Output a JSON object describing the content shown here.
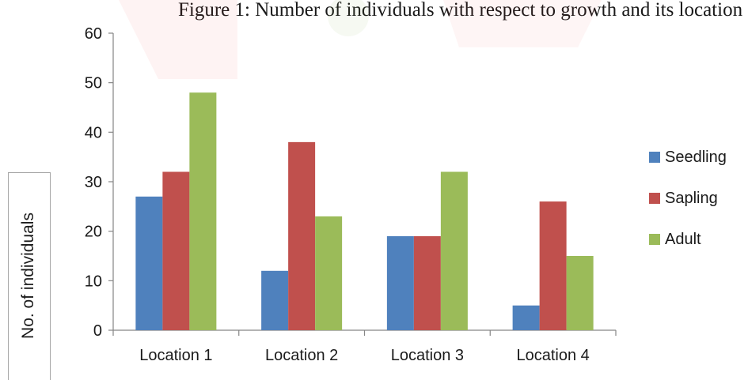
{
  "figure_title": "Figure 1: Number of individuals with respect to growth and its location",
  "chart_data": {
    "type": "bar",
    "title": "",
    "xlabel": "",
    "ylabel": "No. of individuals",
    "categories": [
      "Location 1",
      "Location 2",
      "Location 3",
      "Location 4"
    ],
    "series": [
      {
        "name": "Seedling",
        "color": "#4f81bd",
        "values": [
          27,
          12,
          19,
          5
        ]
      },
      {
        "name": "Sapling",
        "color": "#c0504d",
        "values": [
          32,
          38,
          19,
          26
        ]
      },
      {
        "name": "Adult",
        "color": "#9bbb59",
        "values": [
          48,
          23,
          32,
          15
        ]
      }
    ],
    "ylim": [
      0,
      60
    ],
    "yticks": [
      0,
      10,
      20,
      30,
      40,
      50,
      60
    ],
    "grid": false,
    "legend_position": "right"
  }
}
